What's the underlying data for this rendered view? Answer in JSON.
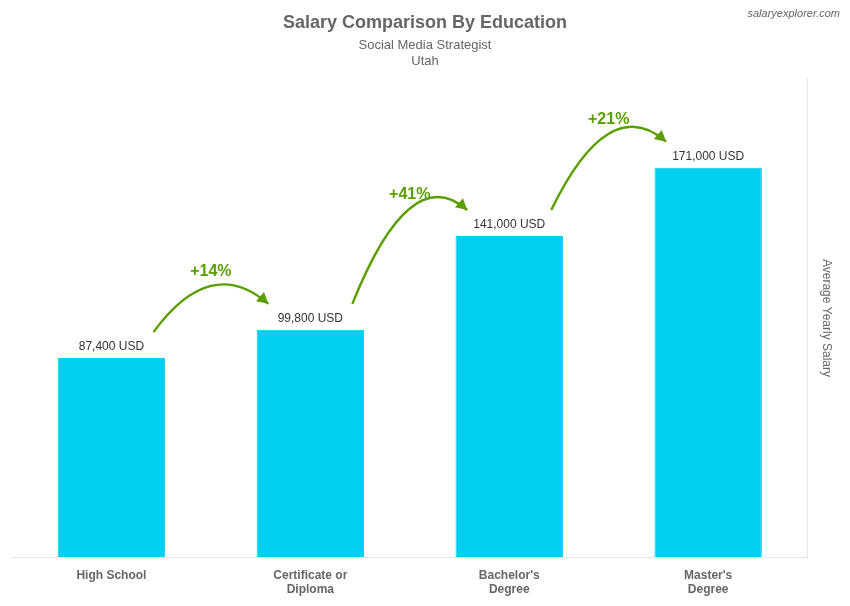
{
  "chart_data": {
    "type": "bar",
    "title": "Salary Comparison By Education",
    "subtitle": [
      "Social Media Strategist",
      "Utah"
    ],
    "ylabel": "Average Yearly Salary",
    "categories": [
      "High School",
      "Certificate or\nDiploma",
      "Bachelor's\nDegree",
      "Master's\nDegree"
    ],
    "values": [
      87400,
      99800,
      141000,
      171000
    ],
    "value_labels": [
      "87,400 USD",
      "99,800 USD",
      "141,000 USD",
      "171,000 USD"
    ],
    "data_labels": true,
    "color": "#00cfef",
    "ylim": [
      0,
      210000
    ],
    "grid": false,
    "tick_labels": "x",
    "annotations": [
      {
        "text": "+14%",
        "from": 0,
        "to": 1
      },
      {
        "text": "+41%",
        "from": 1,
        "to": 2
      },
      {
        "text": "+21%",
        "from": 2,
        "to": 3
      },
      {
        "text": "salaryexplorer.com"
      }
    ]
  }
}
